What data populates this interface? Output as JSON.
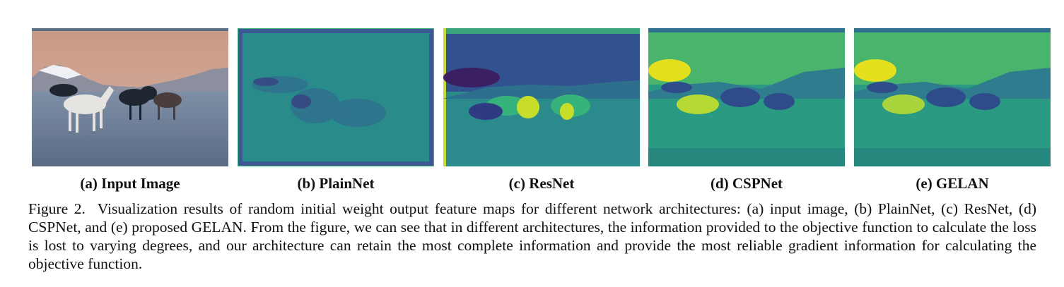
{
  "figure": {
    "panels": [
      {
        "id": "a",
        "label": "(a) Input Image"
      },
      {
        "id": "b",
        "label": "(b) PlainNet"
      },
      {
        "id": "c",
        "label": "(c) ResNet"
      },
      {
        "id": "d",
        "label": "(d) CSPNet"
      },
      {
        "id": "e",
        "label": "(e) GELAN"
      }
    ],
    "caption": {
      "prefix": "Figure 2.",
      "text": "Visualization results of random initial weight output feature maps for different network architectures: (a) input image, (b) PlainNet, (c) ResNet, (d) CSPNet, and (e) proposed GELAN. From the figure, we can see that in different architectures, the information provided to the objective function to calculate the loss is lost to varying degrees, and our architecture can retain the most complete information and provide the most reliable gradient information for calculating the objective function."
    }
  }
}
